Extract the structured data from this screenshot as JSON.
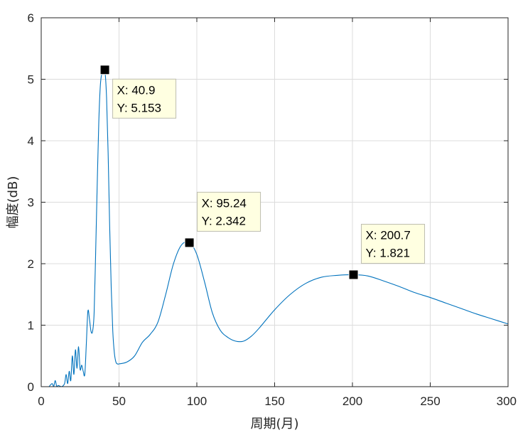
{
  "chart_data": {
    "type": "line",
    "xlabel": "周期(月)",
    "ylabel": "幅度(dB)",
    "xlim": [
      0,
      300
    ],
    "ylim": [
      0,
      6
    ],
    "xticks": [
      0,
      50,
      100,
      150,
      200,
      250,
      300
    ],
    "yticks": [
      0,
      1,
      2,
      3,
      4,
      5,
      6
    ],
    "xtick_labels": [
      "0",
      "50",
      "100",
      "150",
      "200",
      "250",
      "300"
    ],
    "ytick_labels": [
      "0",
      "1",
      "2",
      "3",
      "4",
      "5",
      "6"
    ],
    "grid": true,
    "colors": {
      "line": "#0072BD",
      "grid": "#dcdcdc",
      "axes": "#262626",
      "datatip_bg": "#ffffe1",
      "datatip_border": "#bdbdb0",
      "marker": "#000000"
    },
    "series": [
      {
        "x": [
          5,
          7,
          8,
          9,
          10,
          11,
          13,
          15,
          16,
          17,
          18,
          19,
          20,
          21,
          22,
          23,
          24,
          25,
          26,
          27,
          28,
          29,
          30,
          31,
          32,
          33,
          34,
          35,
          36,
          37,
          38,
          39,
          40,
          40.9,
          42,
          43,
          44,
          45,
          46,
          47,
          48,
          49,
          50,
          55,
          60,
          65,
          70,
          75,
          80,
          85,
          90,
          95.24,
          100,
          105,
          110,
          115,
          120,
          125,
          130,
          135,
          140,
          150,
          160,
          170,
          180,
          190,
          200.7,
          210,
          220,
          230,
          240,
          250,
          260,
          270,
          280,
          290,
          300
        ],
        "y": [
          0,
          0.05,
          0,
          0.1,
          0,
          0.02,
          0,
          0.05,
          0.2,
          0.05,
          0.25,
          0.1,
          0.5,
          0.2,
          0.6,
          0.3,
          0.65,
          0.28,
          0.35,
          0.25,
          0.2,
          0.7,
          1.23,
          1.1,
          0.9,
          0.9,
          1.2,
          2.2,
          3.3,
          4.3,
          4.9,
          5.1,
          5.15,
          5.153,
          4.7,
          3.8,
          2.6,
          1.6,
          0.9,
          0.55,
          0.4,
          0.37,
          0.37,
          0.4,
          0.5,
          0.72,
          0.85,
          1.05,
          1.5,
          2.0,
          2.3,
          2.342,
          2.15,
          1.7,
          1.2,
          0.92,
          0.8,
          0.74,
          0.74,
          0.82,
          0.95,
          1.25,
          1.5,
          1.68,
          1.78,
          1.81,
          1.821,
          1.8,
          1.72,
          1.63,
          1.53,
          1.45,
          1.36,
          1.27,
          1.18,
          1.1,
          1.02
        ]
      }
    ],
    "datatips": [
      {
        "x": 40.9,
        "y": 5.153,
        "line1": "X: 40.9",
        "line2": "Y: 5.153",
        "placement": "below-right"
      },
      {
        "x": 95.24,
        "y": 2.342,
        "line1": "X: 95.24",
        "line2": "Y: 2.342",
        "placement": "above-right"
      },
      {
        "x": 200.7,
        "y": 1.821,
        "line1": "X: 200.7",
        "line2": "Y: 1.821",
        "placement": "above-right"
      }
    ]
  }
}
